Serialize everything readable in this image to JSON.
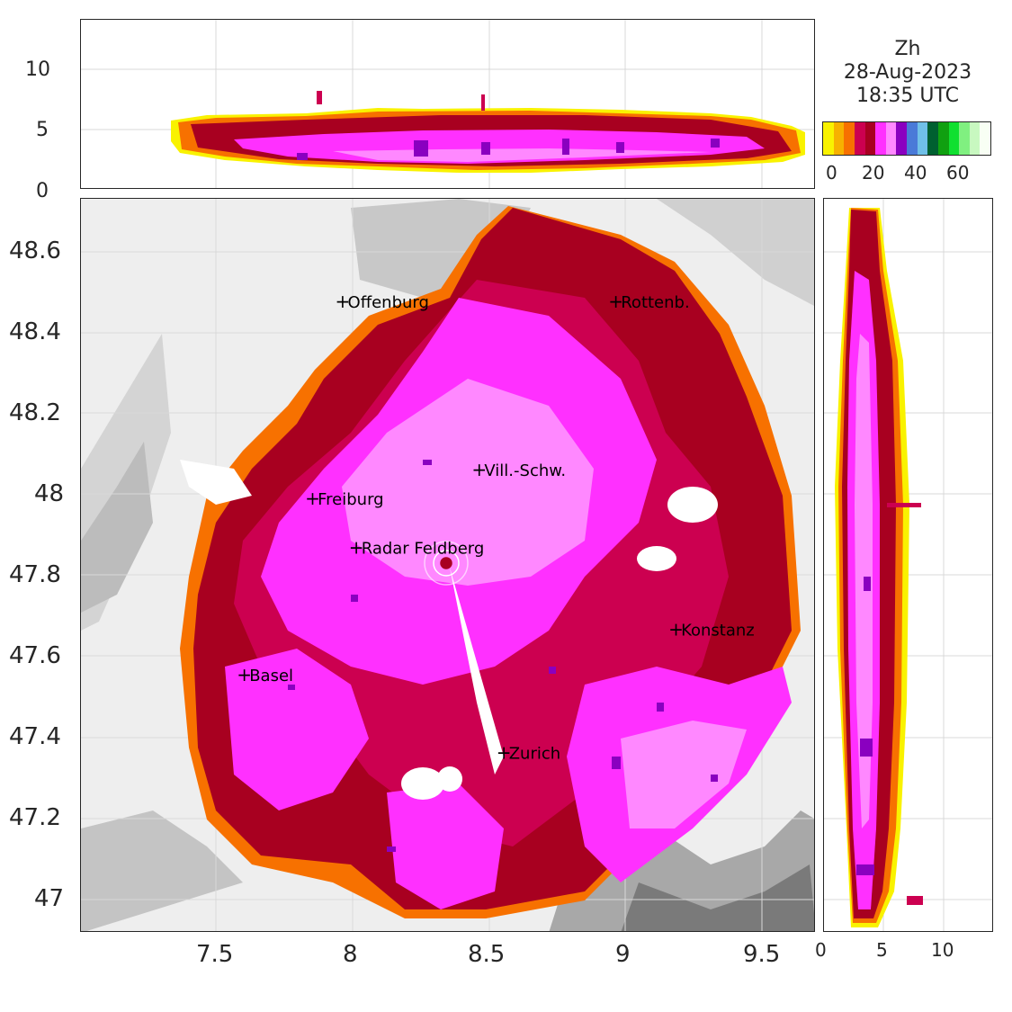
{
  "colorbar": {
    "title_lines": [
      "Zh",
      "28-Aug-2023",
      "18:35 UTC"
    ],
    "tick_labels": [
      "0",
      "20",
      "40",
      "60"
    ],
    "colors": [
      "#f9f200",
      "#f7b100",
      "#f77100",
      "#cc0050",
      "#a80020",
      "#ff30ff",
      "#ff88ff",
      "#8a00c0",
      "#4a7ad8",
      "#70c0e8",
      "#006030",
      "#10a010",
      "#10e030",
      "#80f080",
      "#c8f8c0",
      "#f8fff4"
    ]
  },
  "map": {
    "x_ticks": [
      "7.5",
      "8",
      "8.5",
      "9",
      "9.5"
    ],
    "y_ticks": [
      "48.6",
      "48.4",
      "48.2",
      "48",
      "47.8",
      "47.6",
      "47.4",
      "47.2",
      "47"
    ],
    "cities": [
      {
        "name": "Offenburg",
        "lon": 7.95,
        "lat": 48.47
      },
      {
        "name": "Rottenb.",
        "lon": 8.95,
        "lat": 48.47
      },
      {
        "name": "Vill.-Schw.",
        "lon": 8.45,
        "lat": 48.06
      },
      {
        "name": "Freiburg",
        "lon": 7.84,
        "lat": 47.99
      },
      {
        "name": "Radar Feldberg",
        "lon": 8.0,
        "lat": 47.87
      },
      {
        "name": "Konstanz",
        "lon": 9.17,
        "lat": 47.67
      },
      {
        "name": "Basel",
        "lon": 7.59,
        "lat": 47.56
      },
      {
        "name": "Zurich",
        "lon": 8.54,
        "lat": 47.37
      }
    ],
    "radar": {
      "lon": 8.34,
      "lat": 47.82
    }
  },
  "top_panel": {
    "y_ticks": [
      "0",
      "5",
      "10"
    ]
  },
  "side_panel": {
    "x_ticks": [
      "0",
      "5",
      "10"
    ]
  }
}
